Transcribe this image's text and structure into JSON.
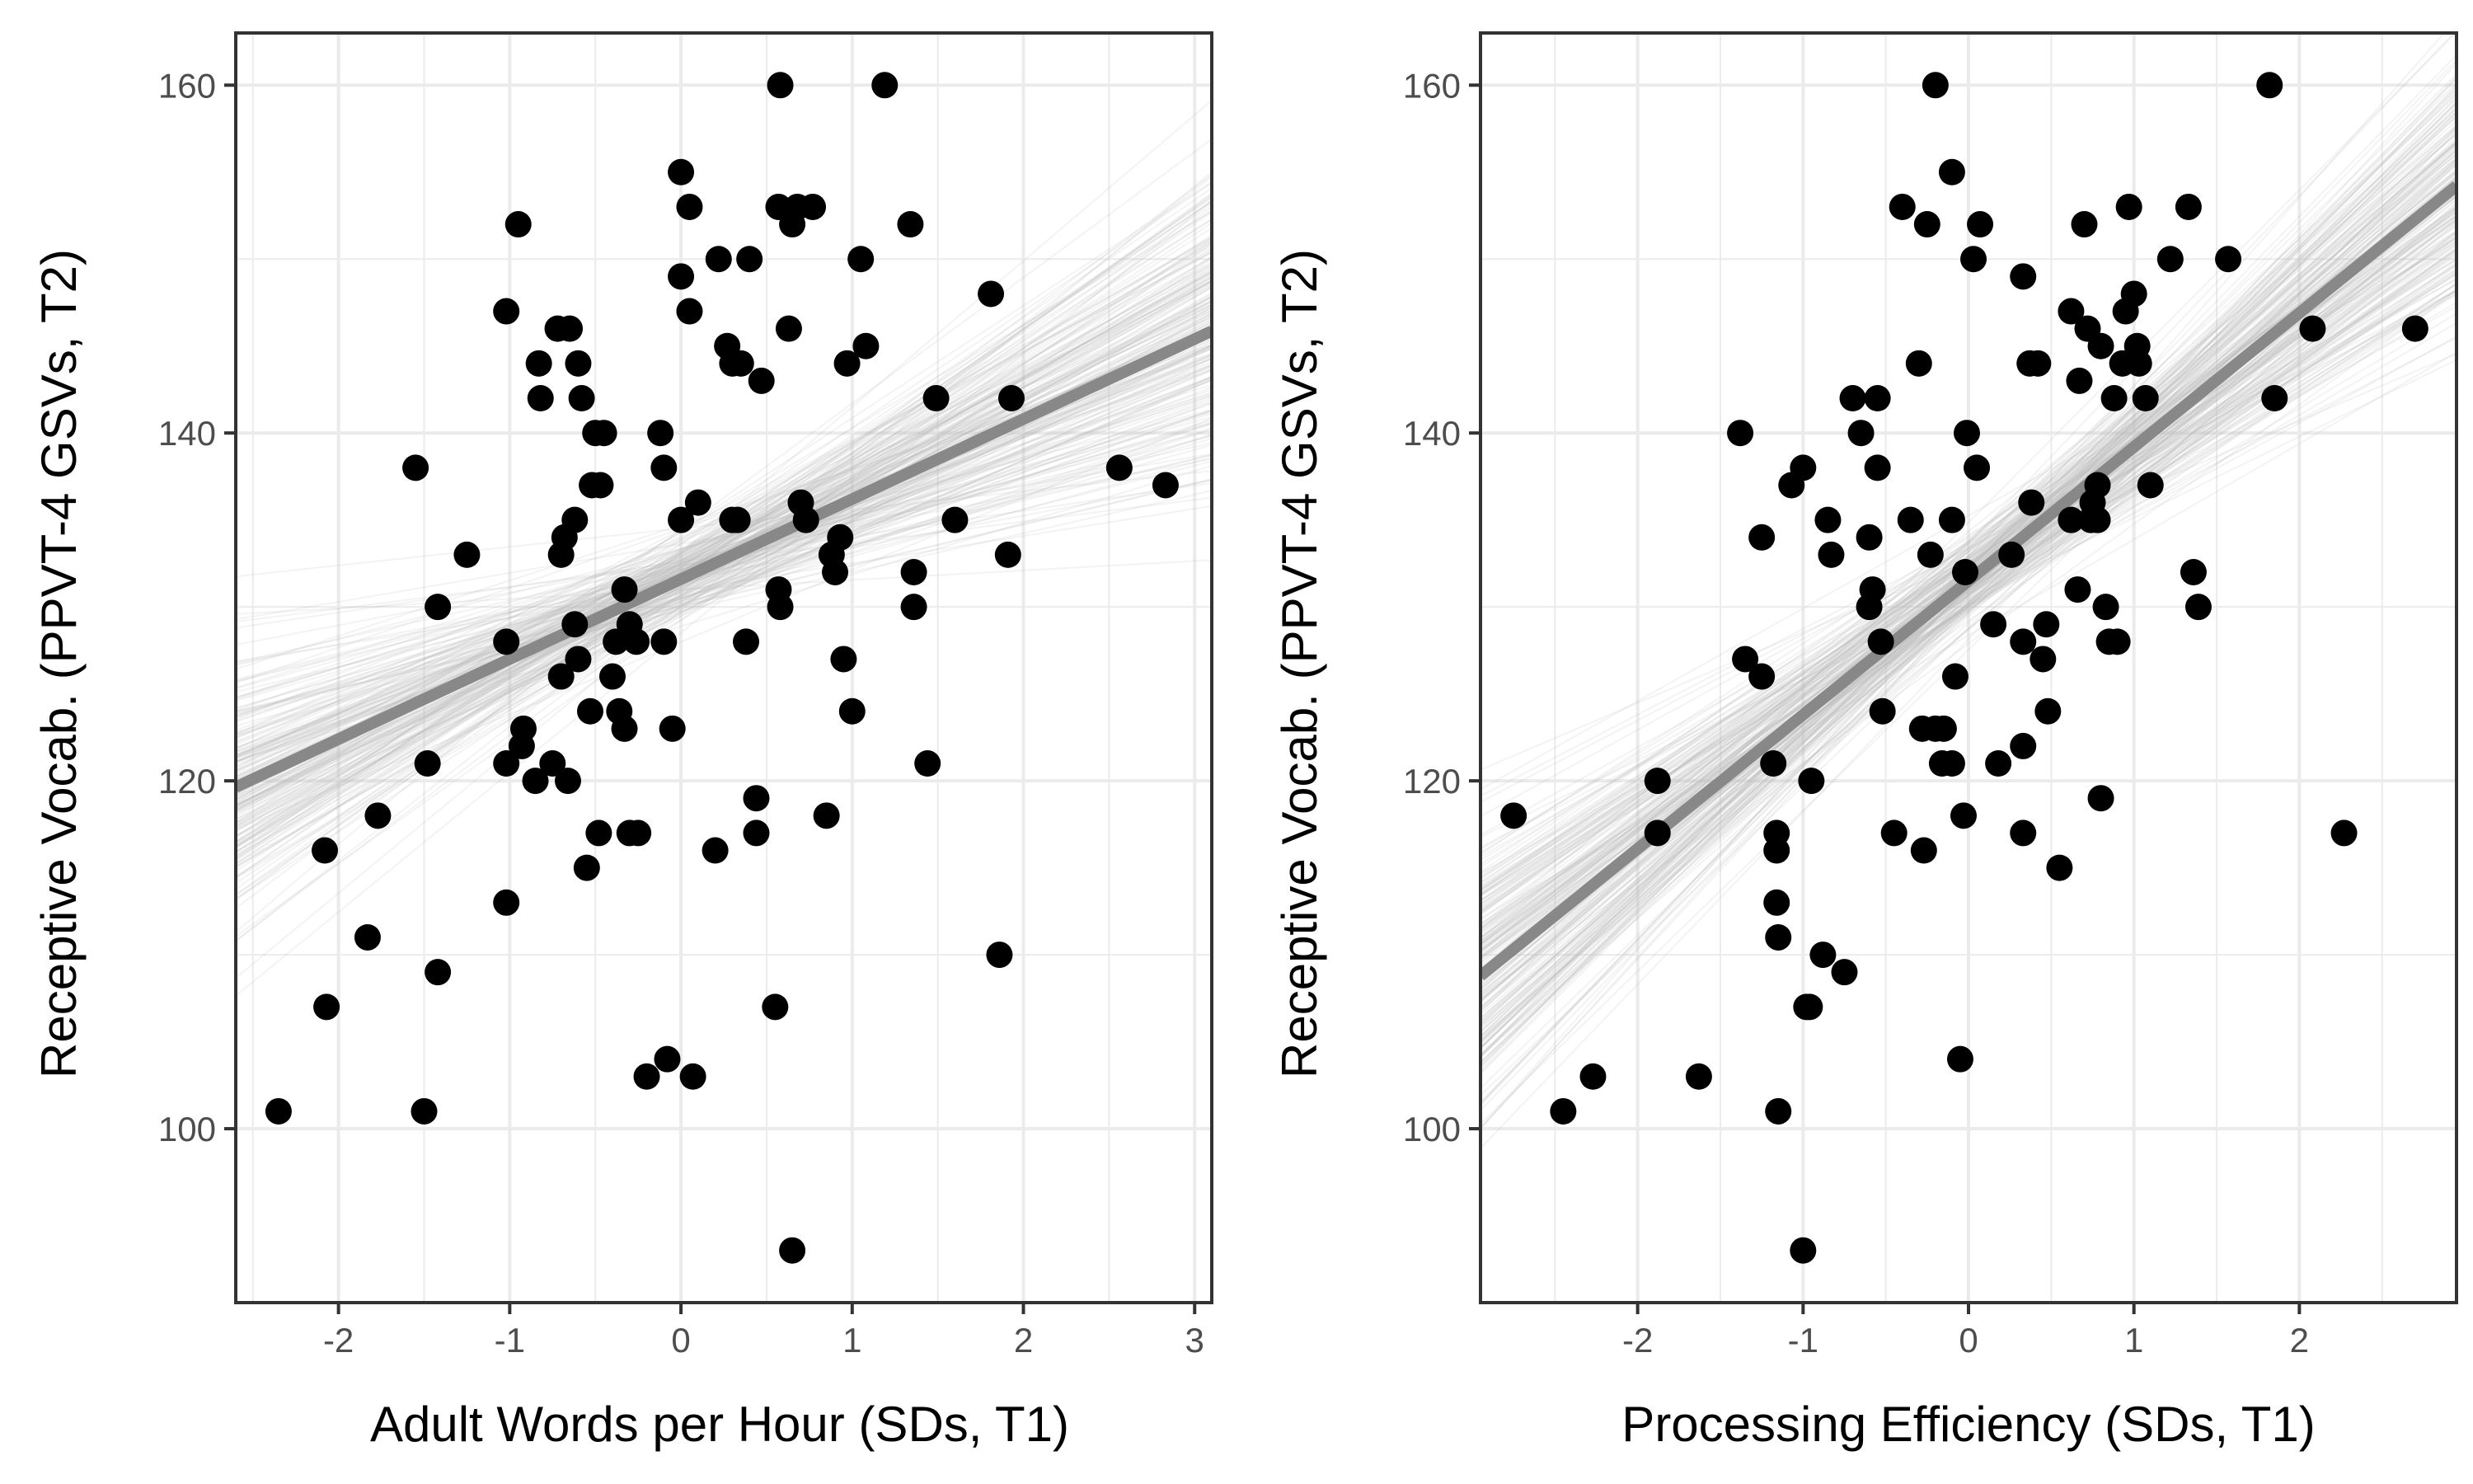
{
  "chart_data": [
    {
      "type": "scatter",
      "title": "",
      "xlabel": "Adult Words per Hour (SDs, T1)",
      "ylabel": "Receptive Vocab. (PPVT-4 GSVs, T2)",
      "xlim": [
        -2.6,
        3.1
      ],
      "ylim": [
        90,
        163
      ],
      "x_ticks": [
        -2,
        -1,
        0,
        1,
        2,
        3
      ],
      "x_tick_labels": [
        "-2",
        "-1",
        "0",
        "1",
        "2",
        "3"
      ],
      "y_ticks": [
        100,
        120,
        140,
        160
      ],
      "y_tick_labels": [
        "100",
        "120",
        "140",
        "160"
      ],
      "grid": true,
      "fit_line": {
        "slope": 4.6,
        "intercept": 131.6,
        "color": "#888888"
      },
      "colors": {
        "points": "#000000",
        "fit": "#888888",
        "posterior": "#bdbdbd"
      },
      "points": [
        [
          -2.35,
          101
        ],
        [
          -2.08,
          116
        ],
        [
          -2.07,
          107
        ],
        [
          -1.83,
          111
        ],
        [
          -1.77,
          118
        ],
        [
          -1.55,
          138
        ],
        [
          -1.5,
          101
        ],
        [
          -1.48,
          121
        ],
        [
          -1.42,
          109
        ],
        [
          -1.42,
          130
        ],
        [
          -1.25,
          133
        ],
        [
          -1.02,
          147
        ],
        [
          -1.02,
          113
        ],
        [
          -1.02,
          121
        ],
        [
          -1.02,
          128
        ],
        [
          -0.95,
          152
        ],
        [
          -0.93,
          122
        ],
        [
          -0.92,
          123
        ],
        [
          -0.85,
          120
        ],
        [
          -0.83,
          144
        ],
        [
          -0.82,
          142
        ],
        [
          -0.75,
          121
        ],
        [
          -0.72,
          146
        ],
        [
          -0.7,
          126
        ],
        [
          -0.7,
          133
        ],
        [
          -0.68,
          134
        ],
        [
          -0.66,
          120
        ],
        [
          -0.65,
          146
        ],
        [
          -0.62,
          135
        ],
        [
          -0.62,
          129
        ],
        [
          -0.6,
          127
        ],
        [
          -0.6,
          144
        ],
        [
          -0.58,
          142
        ],
        [
          -0.55,
          115
        ],
        [
          -0.53,
          124
        ],
        [
          -0.52,
          137
        ],
        [
          -0.5,
          140
        ],
        [
          -0.48,
          117
        ],
        [
          -0.47,
          137
        ],
        [
          -0.45,
          140
        ],
        [
          -0.4,
          126
        ],
        [
          -0.38,
          128
        ],
        [
          -0.36,
          124
        ],
        [
          -0.33,
          131
        ],
        [
          -0.33,
          123
        ],
        [
          -0.3,
          117
        ],
        [
          -0.3,
          129
        ],
        [
          -0.26,
          128
        ],
        [
          -0.25,
          117
        ],
        [
          -0.2,
          103
        ],
        [
          -0.12,
          140
        ],
        [
          -0.1,
          128
        ],
        [
          -0.1,
          138
        ],
        [
          -0.08,
          104
        ],
        [
          -0.05,
          123
        ],
        [
          0.0,
          155
        ],
        [
          0.0,
          149
        ],
        [
          0.0,
          135
        ],
        [
          0.05,
          147
        ],
        [
          0.05,
          153
        ],
        [
          0.07,
          103
        ],
        [
          0.1,
          136
        ],
        [
          0.2,
          116
        ],
        [
          0.22,
          150
        ],
        [
          0.27,
          145
        ],
        [
          0.3,
          135
        ],
        [
          0.3,
          144
        ],
        [
          0.33,
          135
        ],
        [
          0.35,
          144
        ],
        [
          0.38,
          128
        ],
        [
          0.4,
          150
        ],
        [
          0.44,
          119
        ],
        [
          0.44,
          117
        ],
        [
          0.47,
          143
        ],
        [
          0.55,
          107
        ],
        [
          0.57,
          153
        ],
        [
          0.57,
          131
        ],
        [
          0.58,
          130
        ],
        [
          0.58,
          160
        ],
        [
          0.63,
          146
        ],
        [
          0.65,
          152
        ],
        [
          0.65,
          93
        ],
        [
          0.68,
          153
        ],
        [
          0.7,
          136
        ],
        [
          0.73,
          135
        ],
        [
          0.77,
          153
        ],
        [
          0.85,
          118
        ],
        [
          0.88,
          133
        ],
        [
          0.9,
          132
        ],
        [
          0.93,
          134
        ],
        [
          0.95,
          127
        ],
        [
          0.97,
          144
        ],
        [
          1.0,
          124
        ],
        [
          1.05,
          150
        ],
        [
          1.08,
          145
        ],
        [
          1.19,
          160
        ],
        [
          1.34,
          152
        ],
        [
          1.36,
          130
        ],
        [
          1.36,
          132
        ],
        [
          1.44,
          121
        ],
        [
          1.49,
          142
        ],
        [
          1.6,
          135
        ],
        [
          1.81,
          148
        ],
        [
          1.86,
          110
        ],
        [
          1.91,
          133
        ],
        [
          1.93,
          142
        ],
        [
          2.56,
          138
        ],
        [
          2.83,
          137
        ]
      ]
    },
    {
      "type": "scatter",
      "title": "",
      "xlabel": "Processing Efficiency (SDs, T1)",
      "ylabel": "Receptive Vocab. (PPVT-4 GSVs, T2)",
      "xlim": [
        -2.95,
        2.95
      ],
      "ylim": [
        90,
        163
      ],
      "x_ticks": [
        -2,
        -1,
        0,
        1,
        2
      ],
      "x_tick_labels": [
        "-2",
        "-1",
        "0",
        "1",
        "2"
      ],
      "y_ticks": [
        100,
        120,
        140,
        160
      ],
      "y_tick_labels": [
        "100",
        "120",
        "140",
        "160"
      ],
      "grid": true,
      "fit_line": {
        "slope": 7.7,
        "intercept": 131.5,
        "color": "#888888"
      },
      "colors": {
        "points": "#000000",
        "fit": "#888888",
        "posterior": "#bdbdbd"
      },
      "points": [
        [
          -2.75,
          118
        ],
        [
          -2.45,
          101
        ],
        [
          -2.27,
          103
        ],
        [
          -1.88,
          120
        ],
        [
          -1.88,
          117
        ],
        [
          -1.63,
          103
        ],
        [
          -1.38,
          140
        ],
        [
          -1.35,
          127
        ],
        [
          -1.25,
          126
        ],
        [
          -1.25,
          134
        ],
        [
          -1.18,
          121
        ],
        [
          -1.16,
          117
        ],
        [
          -1.16,
          116
        ],
        [
          -1.16,
          113
        ],
        [
          -1.15,
          111
        ],
        [
          -1.15,
          101
        ],
        [
          -1.07,
          137
        ],
        [
          -1.0,
          138
        ],
        [
          -1.0,
          93
        ],
        [
          -0.98,
          107
        ],
        [
          -0.96,
          107
        ],
        [
          -0.95,
          120
        ],
        [
          -0.88,
          110
        ],
        [
          -0.85,
          135
        ],
        [
          -0.83,
          133
        ],
        [
          -0.75,
          109
        ],
        [
          -0.7,
          142
        ],
        [
          -0.65,
          140
        ],
        [
          -0.6,
          134
        ],
        [
          -0.6,
          130
        ],
        [
          -0.58,
          131
        ],
        [
          -0.55,
          142
        ],
        [
          -0.55,
          138
        ],
        [
          -0.53,
          128
        ],
        [
          -0.52,
          124
        ],
        [
          -0.45,
          117
        ],
        [
          -0.4,
          153
        ],
        [
          -0.35,
          135
        ],
        [
          -0.3,
          144
        ],
        [
          -0.28,
          123
        ],
        [
          -0.27,
          116
        ],
        [
          -0.25,
          152
        ],
        [
          -0.23,
          133
        ],
        [
          -0.2,
          160
        ],
        [
          -0.2,
          123
        ],
        [
          -0.16,
          121
        ],
        [
          -0.15,
          123
        ],
        [
          -0.1,
          155
        ],
        [
          -0.1,
          135
        ],
        [
          -0.1,
          121
        ],
        [
          -0.08,
          126
        ],
        [
          -0.05,
          104
        ],
        [
          -0.03,
          118
        ],
        [
          -0.02,
          132
        ],
        [
          -0.01,
          140
        ],
        [
          0.03,
          150
        ],
        [
          0.05,
          138
        ],
        [
          0.07,
          152
        ],
        [
          0.15,
          129
        ],
        [
          0.18,
          121
        ],
        [
          0.26,
          133
        ],
        [
          0.33,
          149
        ],
        [
          0.33,
          128
        ],
        [
          0.33,
          122
        ],
        [
          0.33,
          117
        ],
        [
          0.37,
          144
        ],
        [
          0.38,
          136
        ],
        [
          0.42,
          144
        ],
        [
          0.45,
          127
        ],
        [
          0.47,
          129
        ],
        [
          0.48,
          124
        ],
        [
          0.55,
          115
        ],
        [
          0.62,
          147
        ],
        [
          0.62,
          135
        ],
        [
          0.66,
          131
        ],
        [
          0.67,
          143
        ],
        [
          0.7,
          152
        ],
        [
          0.72,
          146
        ],
        [
          0.74,
          135
        ],
        [
          0.75,
          136
        ],
        [
          0.78,
          137
        ],
        [
          0.78,
          135
        ],
        [
          0.8,
          119
        ],
        [
          0.8,
          145
        ],
        [
          0.83,
          130
        ],
        [
          0.85,
          128
        ],
        [
          0.88,
          142
        ],
        [
          0.9,
          128
        ],
        [
          0.93,
          144
        ],
        [
          0.95,
          147
        ],
        [
          0.97,
          153
        ],
        [
          1.0,
          148
        ],
        [
          1.02,
          145
        ],
        [
          1.03,
          144
        ],
        [
          1.07,
          142
        ],
        [
          1.1,
          137
        ],
        [
          1.22,
          150
        ],
        [
          1.33,
          153
        ],
        [
          1.36,
          132
        ],
        [
          1.39,
          130
        ],
        [
          1.57,
          150
        ],
        [
          1.82,
          160
        ],
        [
          1.85,
          142
        ],
        [
          2.08,
          146
        ],
        [
          2.27,
          117
        ],
        [
          2.7,
          146
        ]
      ]
    }
  ]
}
